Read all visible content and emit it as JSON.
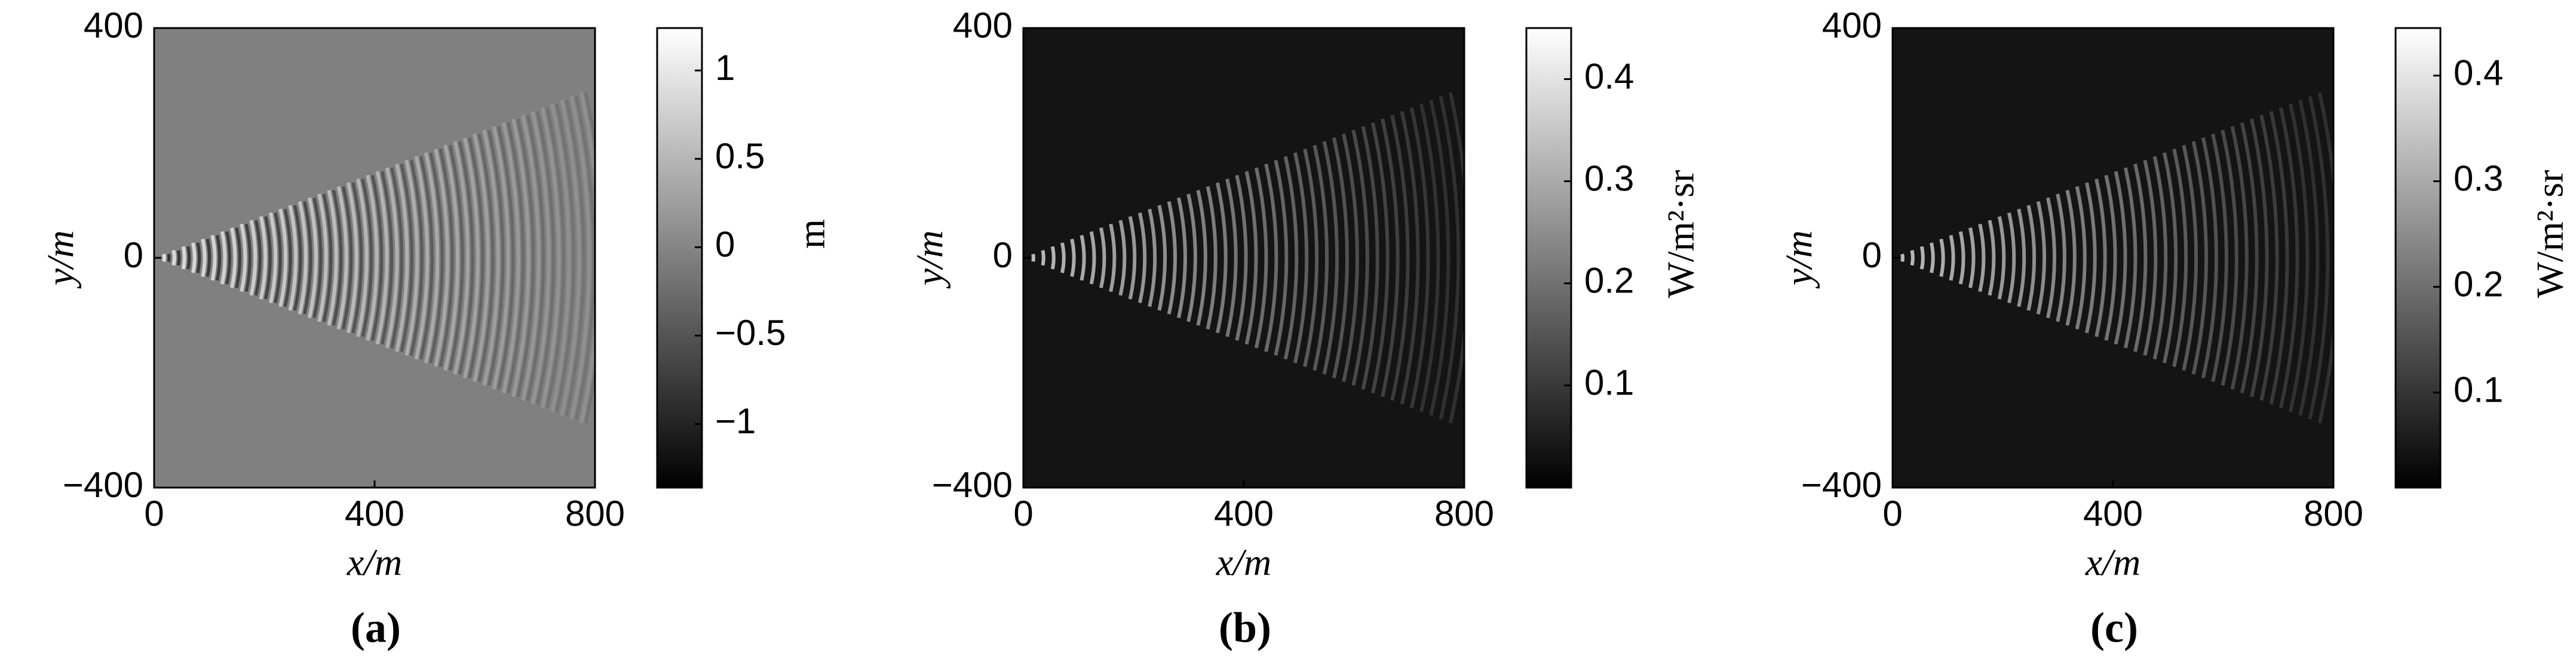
{
  "chart_data": [
    {
      "type": "heatmap",
      "caption": "(a)",
      "xlabel": "x/m",
      "ylabel": "y/m",
      "xlim": [
        0,
        800
      ],
      "ylim": [
        -400,
        400
      ],
      "xticks": [
        0,
        400,
        800
      ],
      "yticks": [
        {
          "value": -400,
          "label": "−400"
        },
        0,
        400
      ],
      "background": "#808080",
      "colormap": [
        "#000000",
        "#ffffff"
      ],
      "colorbar": {
        "label": "m",
        "lim": [
          -1.36,
          1.24
        ],
        "ticks": [
          {
            "value": -1,
            "label": "−1"
          },
          {
            "value": -0.5,
            "label": "−0.5"
          },
          0,
          0.5,
          1
        ]
      }
    },
    {
      "type": "heatmap",
      "caption": "(b)",
      "xlabel": "x/m",
      "ylabel": "y/m",
      "xlim": [
        0,
        800
      ],
      "ylim": [
        -400,
        400
      ],
      "xticks": [
        0,
        400,
        800
      ],
      "yticks": [
        {
          "value": -400,
          "label": "−400"
        },
        0,
        400
      ],
      "background": "#141414",
      "colormap": [
        "#000000",
        "#ffffff"
      ],
      "colorbar": {
        "label": "W/m²·sr",
        "lim": [
          0,
          0.45
        ],
        "ticks": [
          0.1,
          0.2,
          0.3,
          0.4
        ]
      }
    },
    {
      "type": "heatmap",
      "caption": "(c)",
      "xlabel": "x/m",
      "ylabel": "y/m",
      "xlim": [
        0,
        800
      ],
      "ylim": [
        -400,
        400
      ],
      "xticks": [
        0,
        400,
        800
      ],
      "yticks": [
        {
          "value": -400,
          "label": "−400"
        },
        0,
        400
      ],
      "background": "#141414",
      "colormap": [
        "#000000",
        "#ffffff"
      ],
      "colorbar": {
        "label": "W/m²·sr",
        "lim": [
          0.01,
          0.445
        ],
        "ticks": [
          0.1,
          0.2,
          0.3,
          0.4
        ]
      }
    }
  ]
}
